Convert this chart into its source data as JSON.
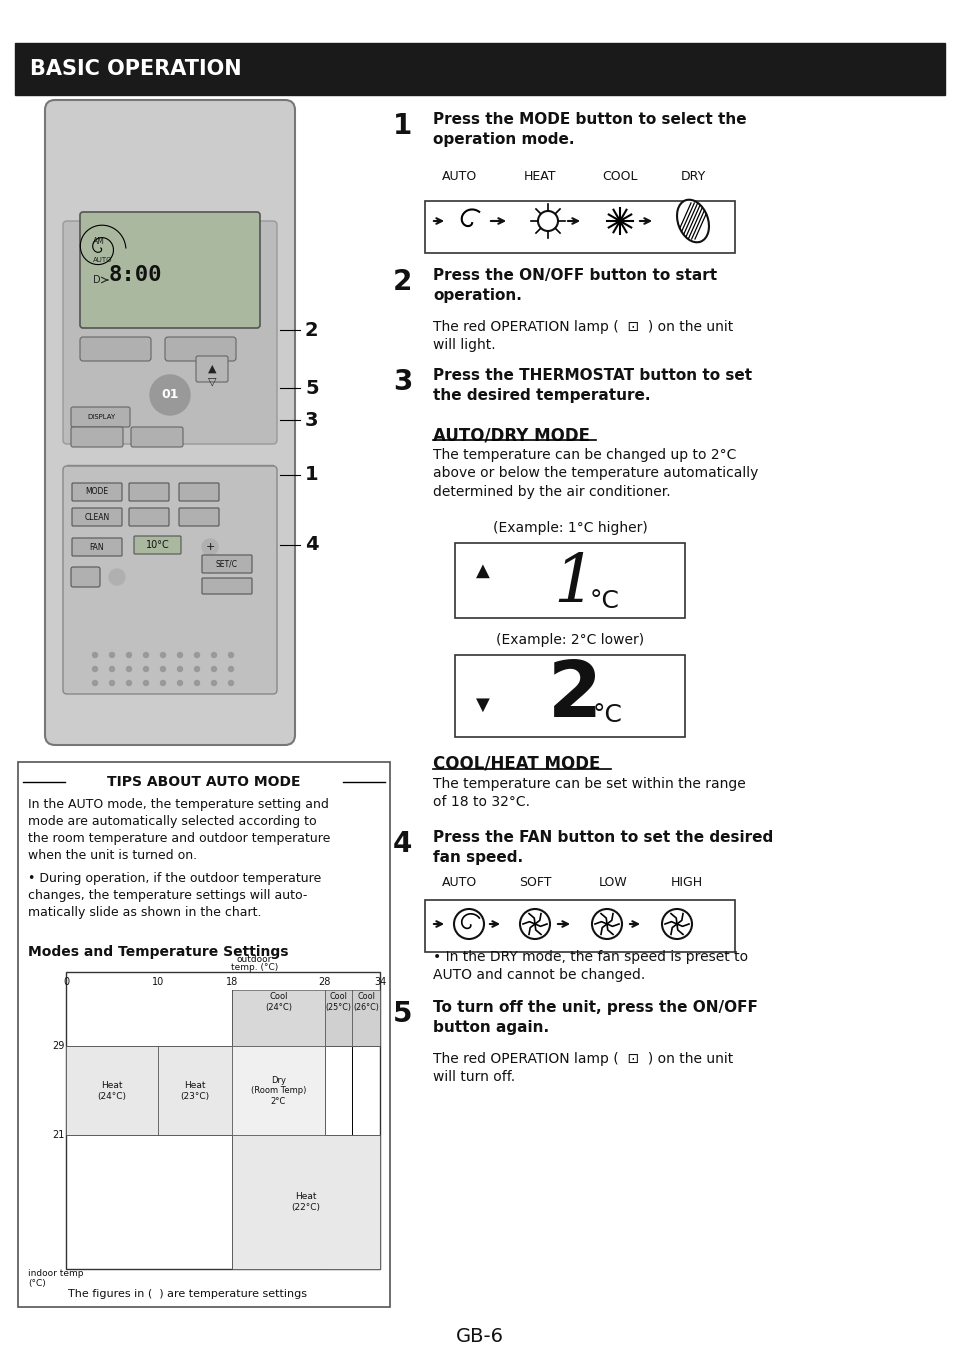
{
  "title": "BASIC OPERATION",
  "bg_color": "#ffffff",
  "header_bg": "#1a1a1a",
  "header_text_color": "#ffffff",
  "header_text": "BASIC OPERATION",
  "footer": "GB-6",
  "mode_labels_row1": [
    "AUTO",
    "HEAT",
    "COOL",
    "DRY"
  ],
  "fan_labels_row1": [
    "AUTO",
    "SOFT",
    "LOW",
    "HIGH"
  ],
  "step2_bullet": "The red OPERATION lamp (  ⊡  ) on the unit\nwill light.",
  "step5_bullet": "The red OPERATION lamp (  ⊡  ) on the unit\nwill turn off.",
  "auto_dry_bullet": "The temperature can be changed up to 2°C\nabove or below the temperature automatically\ndetermined by the air conditioner.",
  "example_higher": "(Example: 1°C higher)",
  "example_lower": "(Example: 2°C lower)",
  "cool_heat_bullet": "The temperature can be set within the range\nof 18 to 32°C.",
  "step4_note": "In the DRY mode, the fan speed is preset to\nAUTO and cannot be changed.",
  "tips_text1": "In the AUTO mode, the temperature setting and\nmode are automatically selected according to\nthe room temperature and outdoor temperature\nwhen the unit is turned on.",
  "tips_text2": "During operation, if the outdoor temperature\nchanges, the temperature settings will auto-\nmatically slide as shown in the chart."
}
